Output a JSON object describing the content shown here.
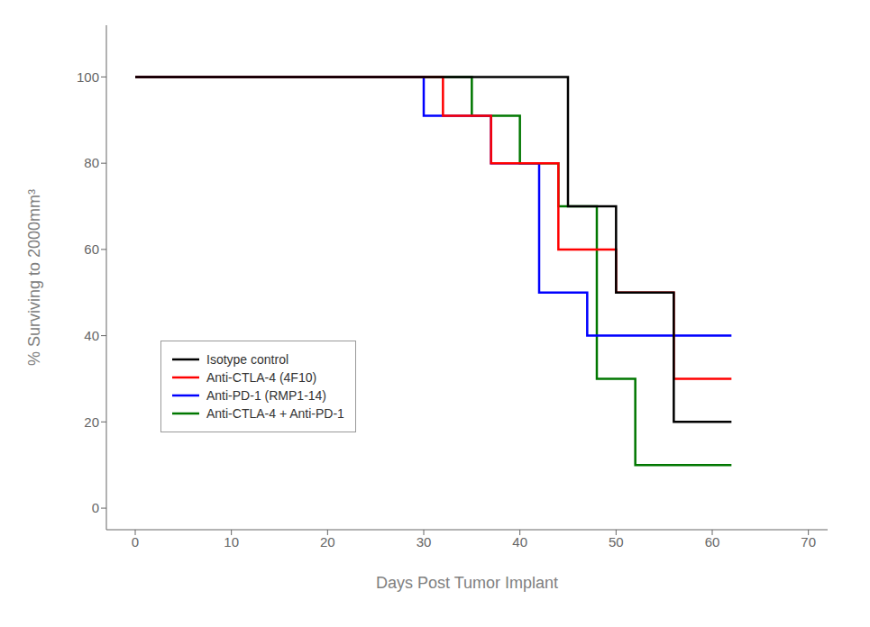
{
  "chart_data": {
    "type": "line",
    "xlabel": "Days Post Tumor Implant",
    "ylabel": "% Surviving to 2000mm³",
    "xlim": [
      -3,
      72
    ],
    "ylim": [
      -5,
      112
    ],
    "xticks": [
      0,
      10,
      20,
      30,
      40,
      50,
      60,
      70
    ],
    "yticks": [
      0,
      20,
      40,
      60,
      80,
      100
    ],
    "grid": false,
    "legend": "lower left",
    "series": [
      {
        "name": "Isotype control",
        "color": "#000000",
        "x": [
          0,
          45,
          45,
          50,
          50,
          56,
          56,
          62
        ],
        "values": [
          100,
          100,
          70,
          70,
          50,
          50,
          20,
          20
        ]
      },
      {
        "name": "Anti-CTLA-4 (4F10)",
        "color": "#ff0000",
        "x": [
          0,
          32,
          32,
          37,
          37,
          44,
          44,
          50,
          50,
          56,
          56,
          62
        ],
        "values": [
          100,
          100,
          91,
          91,
          80,
          80,
          60,
          60,
          50,
          50,
          30,
          30
        ]
      },
      {
        "name": "Anti-PD-1 (RMP1-14)",
        "color": "#0000ff",
        "x": [
          0,
          30,
          30,
          37,
          37,
          42,
          42,
          47,
          47,
          53,
          53,
          62
        ],
        "values": [
          100,
          100,
          91,
          91,
          80,
          80,
          50,
          50,
          40,
          40,
          40,
          40
        ]
      },
      {
        "name": "Anti-CTLA-4 + Anti-PD-1",
        "color": "#007700",
        "x": [
          0,
          35,
          35,
          40,
          40,
          44,
          44,
          48,
          48,
          52,
          52,
          56,
          56,
          62
        ],
        "values": [
          100,
          100,
          91,
          91,
          80,
          80,
          70,
          70,
          30,
          30,
          10,
          10,
          10,
          10
        ]
      }
    ]
  }
}
